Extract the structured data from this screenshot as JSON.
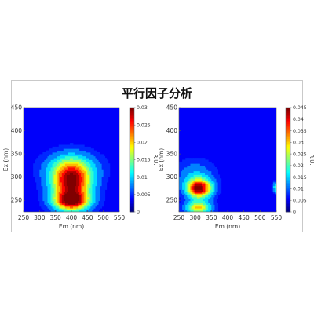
{
  "figure": {
    "title": "平行因子分析"
  },
  "chart_data": [
    {
      "type": "heatmap",
      "panel": "left",
      "xlabel": "Em (nm)",
      "ylabel": "Ex (nm)",
      "xlim": [
        250,
        550
      ],
      "ylim": [
        225,
        450
      ],
      "xticks": [
        "250",
        "300",
        "350",
        "400",
        "450",
        "500",
        "550"
      ],
      "yticks": [
        "250",
        "300",
        "350",
        "400",
        "450"
      ],
      "colorbar": {
        "label": "R.U.",
        "range": [
          0,
          0.03
        ],
        "ticks": [
          "0",
          "0.005",
          "0.01",
          "0.015",
          "0.02",
          "0.025",
          "0.03"
        ]
      },
      "components": [
        {
          "em": 400,
          "ex": 290,
          "sx": 42,
          "sy": 30,
          "amp": 0.03
        },
        {
          "em": 400,
          "ex": 248,
          "sx": 38,
          "sy": 14,
          "amp": 0.024
        },
        {
          "em": 400,
          "ex": 322,
          "sx": 62,
          "sy": 22,
          "amp": 0.006
        }
      ]
    },
    {
      "type": "heatmap",
      "panel": "right",
      "xlabel": "Em (nm)",
      "ylabel": "Ex (nm)",
      "xlim": [
        250,
        550
      ],
      "ylim": [
        225,
        450
      ],
      "xticks": [
        "250",
        "300",
        "350",
        "400",
        "450",
        "500",
        "550"
      ],
      "yticks": [
        "250",
        "300",
        "350",
        "400",
        "450"
      ],
      "colorbar": {
        "label": "R.U.",
        "range": [
          0,
          0.045
        ],
        "ticks": [
          "0",
          "0.005",
          "0.01",
          "0.015",
          "0.02",
          "0.025",
          "0.03",
          "0.035",
          "0.04",
          "0.045"
        ]
      },
      "components": [
        {
          "em": 312,
          "ex": 276,
          "sx": 26,
          "sy": 14,
          "amp": 0.045
        },
        {
          "em": 310,
          "ex": 234,
          "sx": 26,
          "sy": 10,
          "amp": 0.028
        },
        {
          "em": 300,
          "ex": 305,
          "sx": 40,
          "sy": 22,
          "amp": 0.008
        },
        {
          "em": 548,
          "ex": 278,
          "sx": 6,
          "sy": 8,
          "amp": 0.014
        }
      ]
    }
  ]
}
